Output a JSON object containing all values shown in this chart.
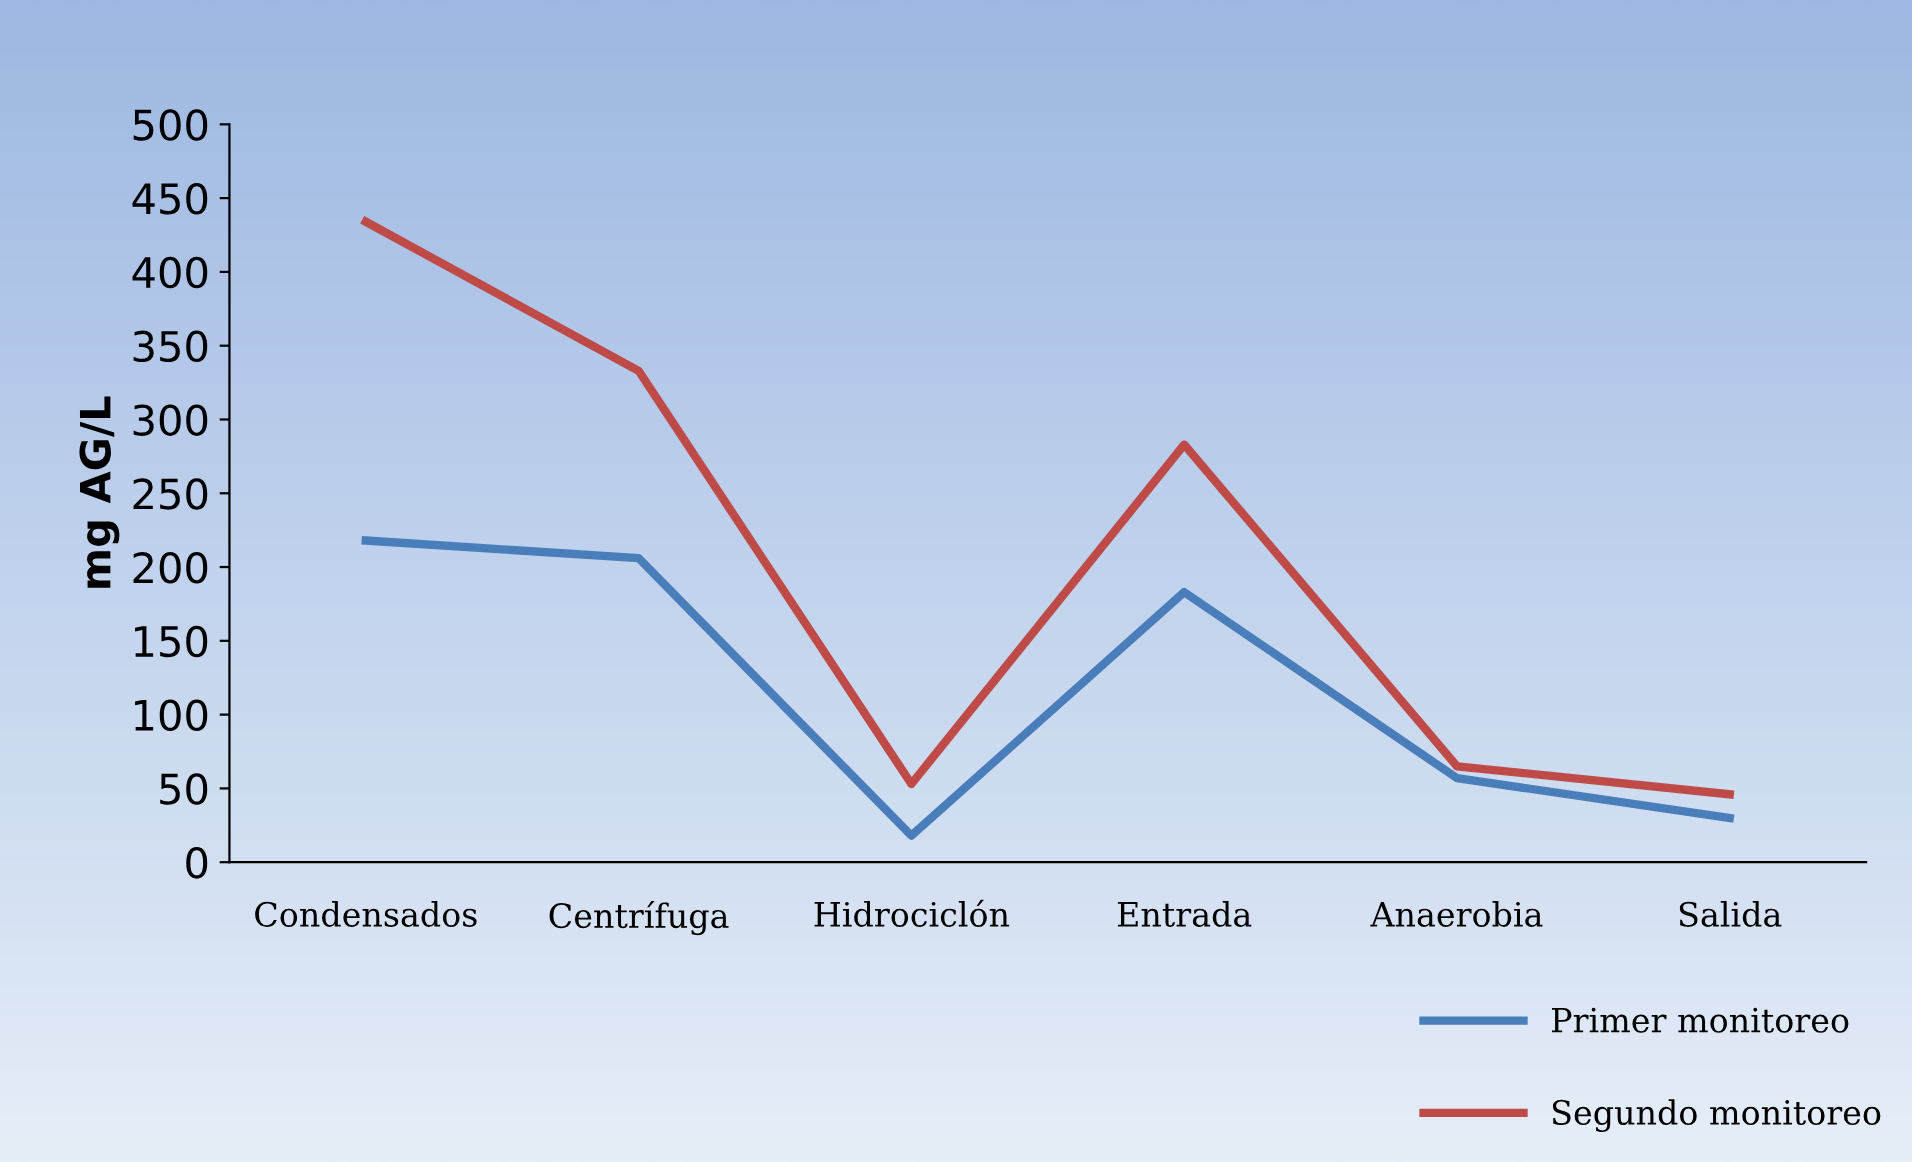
{
  "chart_data": {
    "type": "line",
    "ylabel": "mg AG/L",
    "categories": [
      "Condensados",
      "Centrífuga",
      "Hidrociclón",
      "Entrada",
      "Anaerobia",
      "Salida"
    ],
    "series": [
      {
        "name": "Primer monitoreo",
        "color": "#4a7ebb",
        "values": [
          218,
          206,
          18,
          183,
          57,
          30
        ]
      },
      {
        "name": "Segundo monitoreo",
        "color": "#be4b48",
        "values": [
          434,
          333,
          53,
          283,
          65,
          46
        ]
      }
    ],
    "ylim": [
      0,
      500
    ],
    "yticks": [
      0,
      50,
      100,
      150,
      200,
      250,
      300,
      350,
      400,
      450,
      500
    ],
    "grid": false,
    "legend": "bottom right",
    "marker": "none",
    "line_style": "solid"
  }
}
